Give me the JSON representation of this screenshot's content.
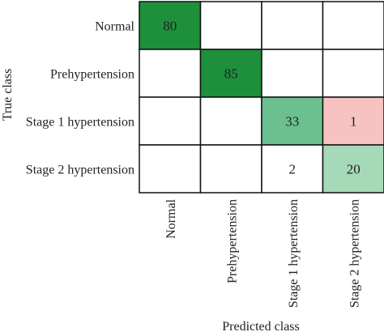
{
  "chart_data": {
    "type": "heatmap",
    "title": "",
    "xlabel": "Predicted class",
    "ylabel": "True class",
    "row_labels": [
      "Normal",
      "Prehypertension",
      "Stage 1 hypertension",
      "Stage 2 hypertension"
    ],
    "col_labels": [
      "Normal",
      "Prehypertension",
      "Stage 1 hypertension",
      "Stage 2 hypertension"
    ],
    "values": [
      [
        80,
        null,
        null,
        null
      ],
      [
        null,
        85,
        null,
        null
      ],
      [
        null,
        null,
        33,
        1
      ],
      [
        null,
        null,
        2,
        20
      ]
    ],
    "cell_colors": [
      [
        "#1e8f3b",
        "#ffffff",
        "#ffffff",
        "#ffffff"
      ],
      [
        "#ffffff",
        "#1e8f3b",
        "#ffffff",
        "#ffffff"
      ],
      [
        "#ffffff",
        "#ffffff",
        "#6cc08f",
        "#f7c2c2"
      ],
      [
        "#ffffff",
        "#ffffff",
        "#ffffff",
        "#a6d9b8"
      ]
    ],
    "grid": true,
    "legend": "none"
  }
}
